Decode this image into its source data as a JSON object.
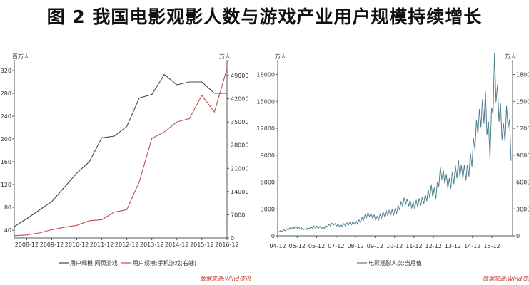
{
  "title": "图 2  我国电影观影人数与游戏产业用户规模持续增长",
  "colors": {
    "black_series": "#444444",
    "red_series": "#c0504d",
    "teal_series": "#4f7f8f",
    "axis": "#555555",
    "source": "#c0392b"
  },
  "chart_data": [
    {
      "type": "line",
      "left_unit": "百万人",
      "right_unit": "万人",
      "left_ylim": [
        40,
        320
      ],
      "left_ticks": [
        "40",
        "80",
        "120",
        "160",
        "200",
        "240",
        "280",
        "320"
      ],
      "right_ylim": [
        0,
        52000
      ],
      "right_ticks": [
        "0",
        "7000",
        "14000",
        "21000",
        "28000",
        "35000",
        "42000",
        "49000"
      ],
      "x_ticks": [
        "2008-12",
        "2009-12",
        "2010-12",
        "2011-12",
        "2012-12",
        "2013-12",
        "2014-12",
        "2015-12",
        "2016-12"
      ],
      "grid": false,
      "legend_position": "bottom",
      "series": [
        {
          "name": "用户规模:网页游戏",
          "axis": "left",
          "x": [
            "2008-06",
            "2008-12",
            "2009-06",
            "2009-12",
            "2010-06",
            "2010-12",
            "2011-06",
            "2011-12",
            "2012-06",
            "2012-12",
            "2013-06",
            "2013-12",
            "2014-06",
            "2014-12",
            "2015-06",
            "2015-12",
            "2016-06",
            "2016-12"
          ],
          "values": [
            46,
            60,
            75,
            90,
            115,
            140,
            160,
            202,
            205,
            222,
            272,
            278,
            313,
            295,
            300,
            300,
            280,
            280
          ]
        },
        {
          "name": "用户规模:手机游戏(右轴)",
          "axis": "right",
          "x": [
            "2008-06",
            "2008-12",
            "2009-06",
            "2009-12",
            "2010-06",
            "2010-12",
            "2011-06",
            "2011-12",
            "2012-06",
            "2012-12",
            "2013-06",
            "2013-12",
            "2014-06",
            "2014-12",
            "2015-06",
            "2015-12",
            "2016-06",
            "2016-12"
          ],
          "values": [
            700,
            900,
            1500,
            2500,
            3200,
            3800,
            5200,
            5500,
            7800,
            8500,
            17000,
            30000,
            32000,
            35000,
            36000,
            43000,
            38000,
            51000
          ]
        }
      ],
      "source": "数据来源:Wind资讯"
    },
    {
      "type": "line",
      "left_unit": "万人",
      "right_unit": "万人",
      "ylim": [
        0,
        19000
      ],
      "y_ticks": [
        "0",
        "3000",
        "6000",
        "9000",
        "12000",
        "15000",
        "18000"
      ],
      "x_ticks": [
        "04-12",
        "05-12",
        "05-12",
        "07-12",
        "08-12",
        "09-12",
        "10-12",
        "11-12",
        "12-12",
        "13-12",
        "14-12",
        "15-12"
      ],
      "grid": false,
      "legend_position": "bottom",
      "series": [
        {
          "name": "电影观影人次:当月值",
          "x": [
            "2004-01",
            "2004-07",
            "2005-01",
            "2005-07",
            "2006-01",
            "2006-07",
            "2007-01",
            "2007-07",
            "2008-01",
            "2008-07",
            "2009-01",
            "2009-07",
            "2010-01",
            "2010-07",
            "2011-01",
            "2011-07",
            "2012-01",
            "2012-07",
            "2012-10",
            "2013-01",
            "2013-07",
            "2013-10",
            "2014-01",
            "2014-07",
            "2014-10",
            "2015-01",
            "2015-07",
            "2015-10",
            "2016-01",
            "2016-07",
            "2016-10",
            "2016-12"
          ],
          "values": [
            500,
            700,
            900,
            700,
            1100,
            900,
            1200,
            1100,
            1500,
            1600,
            2200,
            1900,
            2800,
            2700,
            3600,
            3300,
            4200,
            5200,
            4500,
            6500,
            5600,
            6800,
            8200,
            7200,
            8600,
            11000,
            14000,
            10000,
            19500,
            11500,
            13500,
            9000
          ]
        }
      ],
      "source": "数据来源:Wind资讯"
    }
  ]
}
